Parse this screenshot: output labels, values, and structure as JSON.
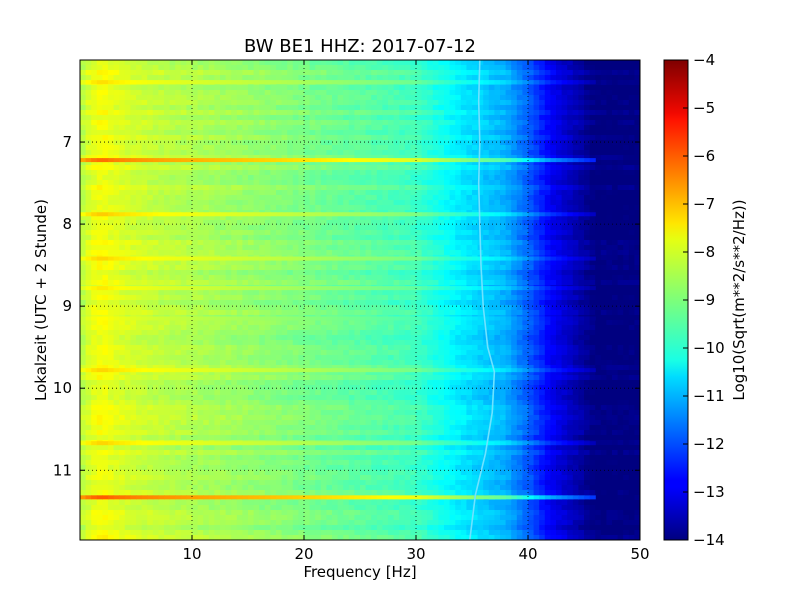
{
  "chart_data": {
    "type": "heatmap",
    "title": "BW BE1 HHZ: 2017-07-12",
    "xlabel": "Frequency [Hz]",
    "ylabel": "Lokalzeit (UTC + 2 Stunde)",
    "colorbar_label": "Log10(Sqrt(m**2/s**2/Hz))",
    "colormap": "jet",
    "grid": true,
    "xlim": [
      0,
      50
    ],
    "ylim": [
      11.85,
      6.0
    ],
    "y_inverted": true,
    "clim": [
      -14,
      -4
    ],
    "x_ticks": [
      10,
      20,
      30,
      40,
      50
    ],
    "x_tick_labels": [
      "10",
      "20",
      "30",
      "40",
      "50"
    ],
    "y_ticks": [
      7,
      8,
      9,
      10,
      11
    ],
    "y_tick_labels": [
      "7",
      "8",
      "9",
      "10",
      "11"
    ],
    "colorbar_ticks": [
      -4,
      -5,
      -6,
      -7,
      -8,
      -9,
      -10,
      -11,
      -12,
      -13,
      -14
    ],
    "colorbar_tick_labels": [
      "−4",
      "−5",
      "−6",
      "−7",
      "−8",
      "−9",
      "−10",
      "−11",
      "−12",
      "−13",
      "−14"
    ],
    "profile": {
      "frequency_hz": [
        0,
        1,
        2,
        3,
        5,
        8,
        12,
        18,
        25,
        30,
        32,
        34,
        36,
        38,
        40,
        42,
        44,
        46,
        50
      ],
      "log_psd": [
        -8.5,
        -8.0,
        -7.8,
        -8.0,
        -8.2,
        -8.4,
        -8.6,
        -8.9,
        -9.3,
        -9.6,
        -10.0,
        -10.4,
        -10.7,
        -11.0,
        -11.8,
        -12.8,
        -13.4,
        -14.0,
        -14.0
      ]
    },
    "horizontal_bands": [
      {
        "time": 6.27,
        "log_psd_offset": -0.5
      },
      {
        "time": 7.22,
        "log_psd_offset": 0.6
      },
      {
        "time": 7.88,
        "log_psd_offset": -0.3
      },
      {
        "time": 8.42,
        "log_psd_offset": -0.4
      },
      {
        "time": 8.78,
        "log_psd_offset": -0.6
      },
      {
        "time": 9.15,
        "log_psd_offset": -0.8
      },
      {
        "time": 9.78,
        "log_psd_offset": -0.4
      },
      {
        "time": 10.67,
        "log_psd_offset": -0.4
      },
      {
        "time": 11.33,
        "log_psd_offset": 0.8
      }
    ],
    "spectral_line": {
      "time": [
        6.0,
        6.5,
        7.0,
        7.5,
        8.0,
        8.5,
        9.0,
        9.5,
        9.8,
        10.3,
        10.8,
        11.3,
        11.85
      ],
      "frequency_hz": [
        35.7,
        35.6,
        35.7,
        35.6,
        35.7,
        35.8,
        36.0,
        36.4,
        37.0,
        36.8,
        36.2,
        35.3,
        34.8
      ]
    }
  }
}
